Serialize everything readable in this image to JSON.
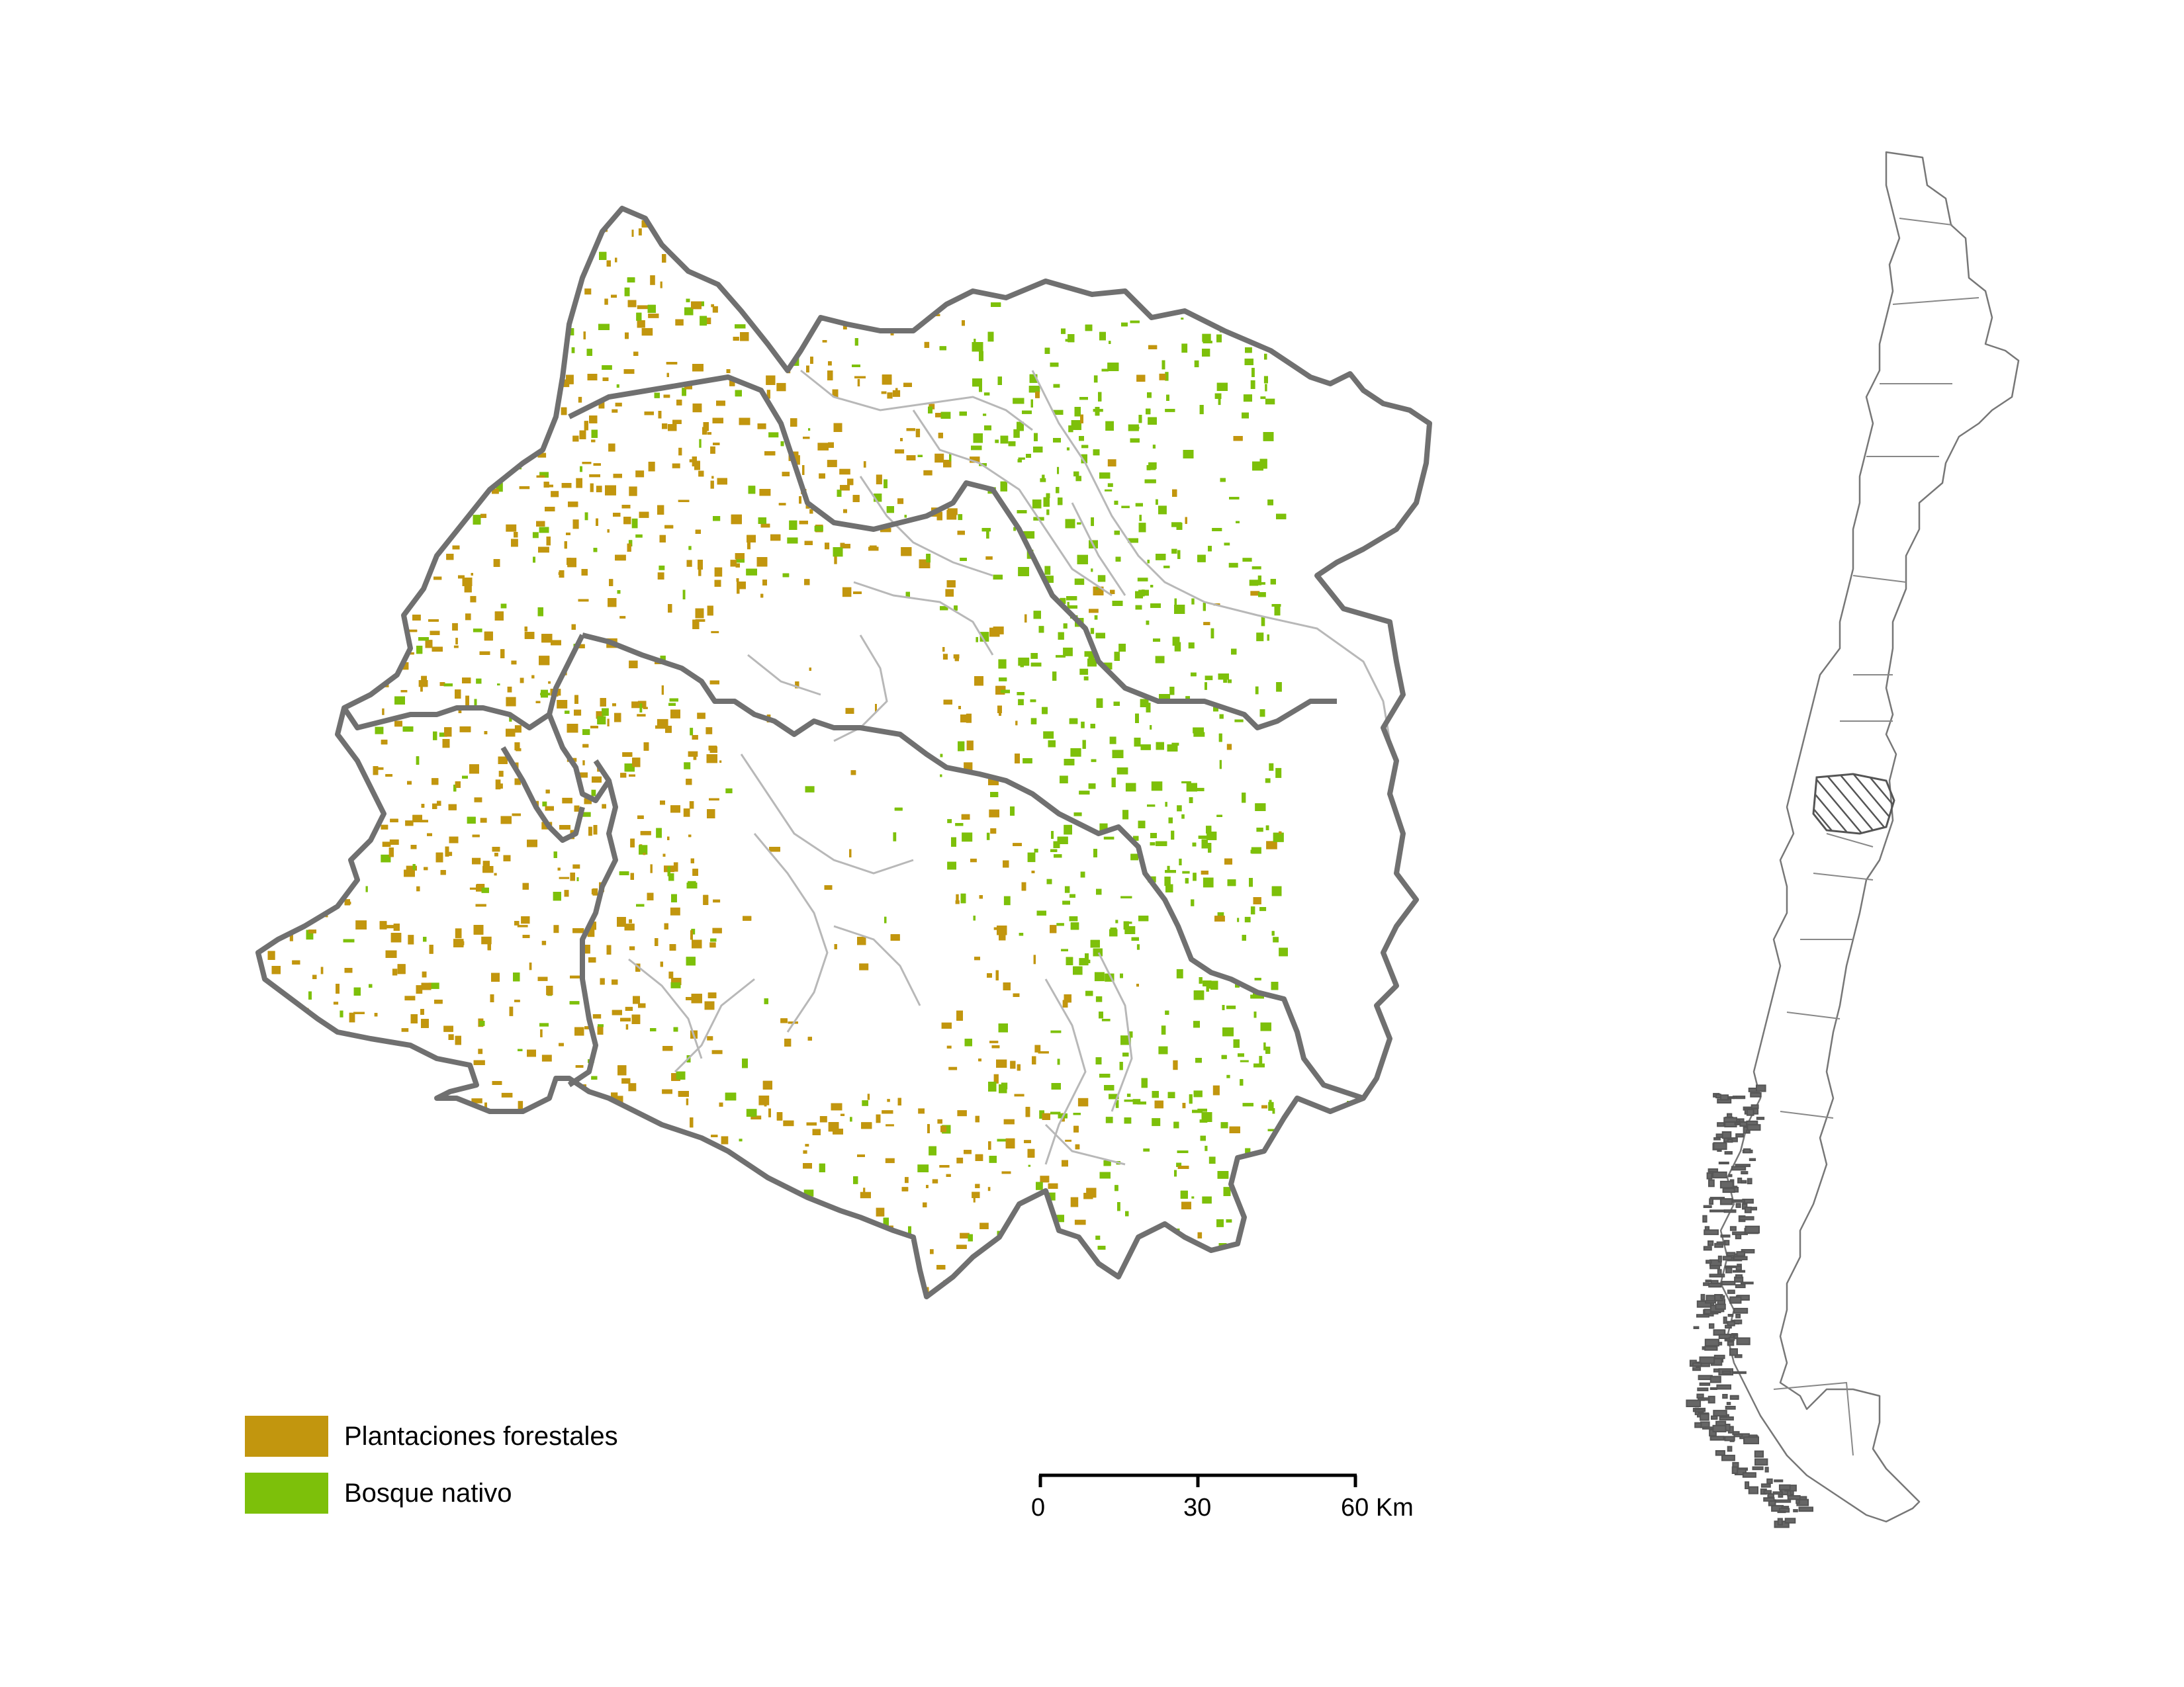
{
  "legend": {
    "items": [
      {
        "label": "Plantaciones forestales",
        "color": "#C2960E"
      },
      {
        "label": "Bosque nativo",
        "color": "#7DC00A"
      }
    ]
  },
  "scale_bar": {
    "ticks": [
      "0",
      "30",
      "60 Km"
    ]
  },
  "colors": {
    "region_outline": "#707070",
    "commune_lines": "#B8B8B8",
    "plantation": "#C2960E",
    "native_forest": "#7DC00A",
    "inset_outline": "#6A6A6A"
  }
}
